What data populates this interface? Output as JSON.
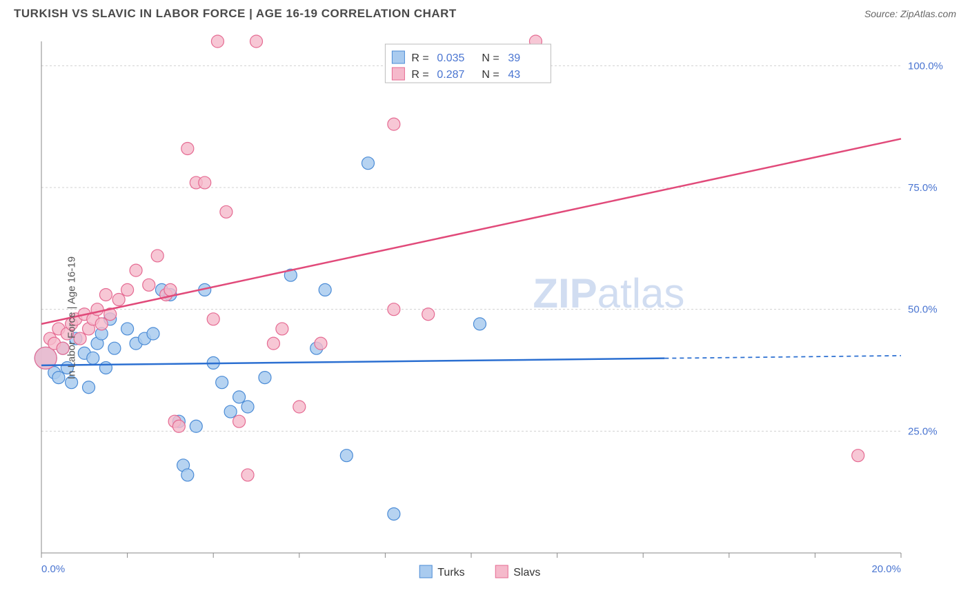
{
  "title": "TURKISH VS SLAVIC IN LABOR FORCE | AGE 16-19 CORRELATION CHART",
  "source": "Source: ZipAtlas.com",
  "ylabel": "In Labor Force | Age 16-19",
  "watermark": {
    "bold": "ZIP",
    "light": "atlas"
  },
  "chart": {
    "type": "scatter",
    "xlim": [
      0,
      20
    ],
    "ylim": [
      0,
      105
    ],
    "x_ticks": [
      0,
      2,
      4,
      6,
      8,
      10,
      12,
      14,
      16,
      18,
      20
    ],
    "x_labels": [
      {
        "x": 0,
        "label": "0.0%"
      },
      {
        "x": 20,
        "label": "20.0%"
      }
    ],
    "y_ticks": [
      25,
      50,
      75,
      100
    ],
    "y_labels": [
      "25.0%",
      "50.0%",
      "75.0%",
      "100.0%"
    ],
    "grid_color": "#d0d0d0",
    "background_color": "#ffffff",
    "series": [
      {
        "name": "Turks",
        "marker_fill": "#a9cbef",
        "marker_stroke": "#4a8bd6",
        "marker_opacity": 0.85,
        "marker_radius": 9,
        "line_color": "#2b6fd1",
        "line_width": 2.5,
        "trend": {
          "x1": 0,
          "y1": 38.5,
          "x2": 20,
          "y2": 40.5,
          "solid_until_x": 14.5
        },
        "R": "0.035",
        "N": "39",
        "points": [
          {
            "x": 0.1,
            "y": 40,
            "r": 16
          },
          {
            "x": 0.3,
            "y": 37
          },
          {
            "x": 0.4,
            "y": 36
          },
          {
            "x": 0.5,
            "y": 42
          },
          {
            "x": 0.6,
            "y": 38
          },
          {
            "x": 0.7,
            "y": 35
          },
          {
            "x": 0.8,
            "y": 44
          },
          {
            "x": 1.0,
            "y": 41
          },
          {
            "x": 1.1,
            "y": 34
          },
          {
            "x": 1.2,
            "y": 40
          },
          {
            "x": 1.3,
            "y": 43
          },
          {
            "x": 1.4,
            "y": 45
          },
          {
            "x": 1.5,
            "y": 38
          },
          {
            "x": 1.6,
            "y": 48
          },
          {
            "x": 1.7,
            "y": 42
          },
          {
            "x": 2.0,
            "y": 46
          },
          {
            "x": 2.2,
            "y": 43
          },
          {
            "x": 2.4,
            "y": 44
          },
          {
            "x": 2.6,
            "y": 45
          },
          {
            "x": 2.8,
            "y": 54
          },
          {
            "x": 3.0,
            "y": 53
          },
          {
            "x": 3.2,
            "y": 27
          },
          {
            "x": 3.3,
            "y": 18
          },
          {
            "x": 3.4,
            "y": 16
          },
          {
            "x": 3.6,
            "y": 26
          },
          {
            "x": 3.8,
            "y": 54
          },
          {
            "x": 4.0,
            "y": 39
          },
          {
            "x": 4.2,
            "y": 35
          },
          {
            "x": 4.4,
            "y": 29
          },
          {
            "x": 4.6,
            "y": 32
          },
          {
            "x": 4.8,
            "y": 30
          },
          {
            "x": 5.2,
            "y": 36
          },
          {
            "x": 5.8,
            "y": 57
          },
          {
            "x": 6.4,
            "y": 42
          },
          {
            "x": 6.6,
            "y": 54
          },
          {
            "x": 7.1,
            "y": 20
          },
          {
            "x": 7.6,
            "y": 80
          },
          {
            "x": 8.2,
            "y": 8
          },
          {
            "x": 10.2,
            "y": 47
          }
        ]
      },
      {
        "name": "Slavs",
        "marker_fill": "#f5b9cb",
        "marker_stroke": "#e56a92",
        "marker_opacity": 0.8,
        "marker_radius": 9,
        "line_color": "#e14a7a",
        "line_width": 2.5,
        "trend": {
          "x1": 0,
          "y1": 47,
          "x2": 20,
          "y2": 85,
          "solid_until_x": 20
        },
        "R": "0.287",
        "N": "43",
        "points": [
          {
            "x": 0.1,
            "y": 40,
            "r": 16
          },
          {
            "x": 0.2,
            "y": 44
          },
          {
            "x": 0.3,
            "y": 43
          },
          {
            "x": 0.4,
            "y": 46
          },
          {
            "x": 0.5,
            "y": 42
          },
          {
            "x": 0.6,
            "y": 45
          },
          {
            "x": 0.7,
            "y": 47
          },
          {
            "x": 0.8,
            "y": 48
          },
          {
            "x": 0.9,
            "y": 44
          },
          {
            "x": 1.0,
            "y": 49
          },
          {
            "x": 1.1,
            "y": 46
          },
          {
            "x": 1.2,
            "y": 48
          },
          {
            "x": 1.3,
            "y": 50
          },
          {
            "x": 1.4,
            "y": 47
          },
          {
            "x": 1.5,
            "y": 53
          },
          {
            "x": 1.6,
            "y": 49
          },
          {
            "x": 1.8,
            "y": 52
          },
          {
            "x": 2.0,
            "y": 54
          },
          {
            "x": 2.2,
            "y": 58
          },
          {
            "x": 2.5,
            "y": 55
          },
          {
            "x": 2.7,
            "y": 61
          },
          {
            "x": 2.9,
            "y": 53
          },
          {
            "x": 3.0,
            "y": 54
          },
          {
            "x": 3.1,
            "y": 27
          },
          {
            "x": 3.2,
            "y": 26
          },
          {
            "x": 3.4,
            "y": 83
          },
          {
            "x": 3.6,
            "y": 76
          },
          {
            "x": 3.8,
            "y": 76
          },
          {
            "x": 4.0,
            "y": 48
          },
          {
            "x": 4.1,
            "y": 105
          },
          {
            "x": 4.3,
            "y": 70
          },
          {
            "x": 4.6,
            "y": 27
          },
          {
            "x": 4.8,
            "y": 16
          },
          {
            "x": 5.0,
            "y": 105
          },
          {
            "x": 5.4,
            "y": 43
          },
          {
            "x": 5.6,
            "y": 46
          },
          {
            "x": 6.0,
            "y": 30
          },
          {
            "x": 6.5,
            "y": 43
          },
          {
            "x": 8.2,
            "y": 88
          },
          {
            "x": 8.2,
            "y": 50
          },
          {
            "x": 9.0,
            "y": 49
          },
          {
            "x": 11.5,
            "y": 105
          },
          {
            "x": 19.0,
            "y": 20
          }
        ]
      }
    ]
  },
  "legend_top": {
    "R_label": "R =",
    "N_label": "N ="
  },
  "legend_bottom": {
    "items": [
      "Turks",
      "Slavs"
    ]
  }
}
